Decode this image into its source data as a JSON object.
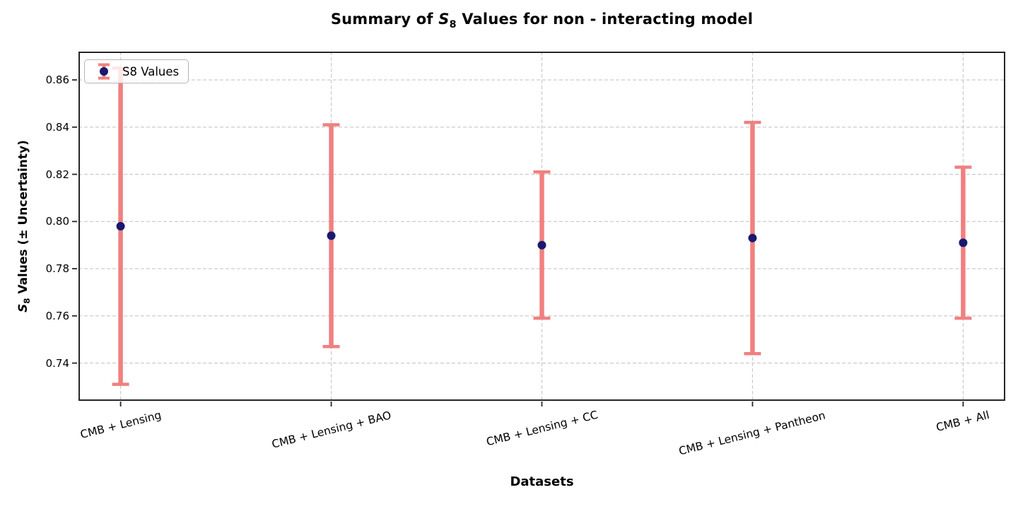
{
  "figure": {
    "title": {
      "pre": "Summary of ",
      "math_s": "S",
      "math_sub": "8",
      "post": " Values for non - interacting model"
    },
    "xlabel": "Datasets",
    "ylabel": {
      "math_s": "S",
      "math_sub": "8",
      "post": " Values (± Uncertainty)"
    },
    "legend": {
      "label": "S8 Values"
    }
  },
  "chart_data": {
    "type": "scatter",
    "subtype": "errorbar",
    "title": "Summary of S8 Values for non - interacting model",
    "xlabel": "Datasets",
    "ylabel": "S8 Values (± Uncertainty)",
    "categories": [
      "CMB + Lensing",
      "CMB + Lensing + BAO",
      "CMB + Lensing + CC",
      "CMB + Lensing + Pantheon",
      "CMB + All"
    ],
    "series": [
      {
        "name": "S8 Values",
        "values": [
          0.798,
          0.794,
          0.79,
          0.793,
          0.791
        ],
        "errors": [
          0.067,
          0.047,
          0.031,
          0.049,
          0.032
        ],
        "lower": [
          0.731,
          0.747,
          0.759,
          0.744,
          0.759
        ],
        "upper": [
          0.865,
          0.841,
          0.821,
          0.842,
          0.823
        ]
      }
    ],
    "ylim": [
      0.724,
      0.872
    ],
    "yticks": [
      0.74,
      0.76,
      0.78,
      0.8,
      0.82,
      0.84,
      0.86
    ],
    "grid": true,
    "grid_style": "dashed",
    "legend_position": "upper left",
    "colors": {
      "point": "#191970",
      "errorbar": "#f08080",
      "grid": "#c7c7c7",
      "spine": "#262626",
      "tick": "#262626",
      "legend_border": "#b5b5b5"
    }
  }
}
